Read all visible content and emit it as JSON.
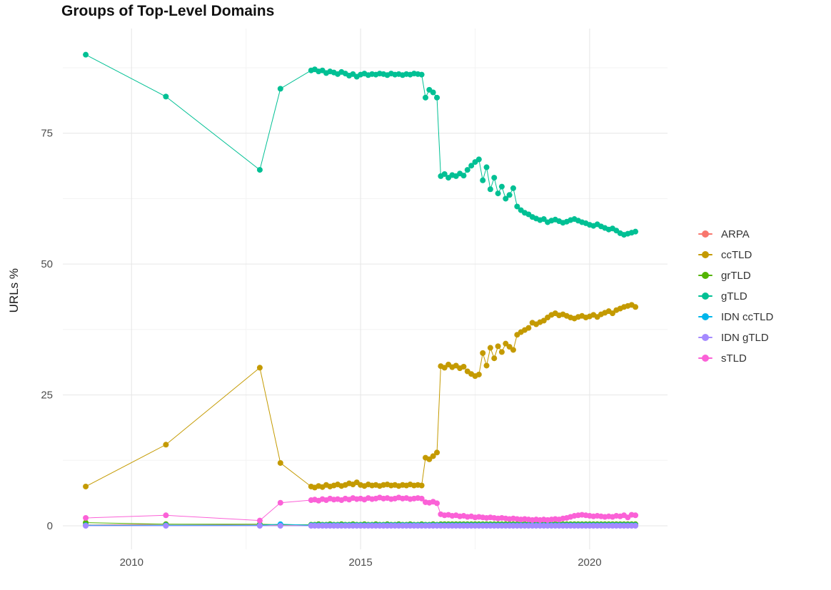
{
  "page": {
    "background": "#ffffff"
  },
  "chart_data": {
    "type": "line",
    "title": "Groups of Top-Level Domains",
    "xlabel": "",
    "ylabel": "URLs %",
    "grid": true,
    "legend_position": "right",
    "x_ticks": [
      2010,
      2015,
      2020
    ],
    "x_minor_ticks": [
      2012.5,
      2017.5
    ],
    "y_ticks": [
      0,
      25,
      50,
      75
    ],
    "y_minor_ticks": [
      12.5,
      37.5,
      62.5,
      87.5
    ],
    "x_domain": [
      2008.5,
      2021.7
    ],
    "y_domain": [
      -4.5,
      95
    ],
    "x": [
      2009.0,
      2010.75,
      2012.8,
      2013.25,
      2013.92,
      2014.0,
      2014.083,
      2014.167,
      2014.25,
      2014.333,
      2014.417,
      2014.5,
      2014.583,
      2014.667,
      2014.75,
      2014.833,
      2014.917,
      2015.0,
      2015.083,
      2015.167,
      2015.25,
      2015.333,
      2015.417,
      2015.5,
      2015.583,
      2015.667,
      2015.75,
      2015.833,
      2015.917,
      2016.0,
      2016.083,
      2016.167,
      2016.25,
      2016.333,
      2016.417,
      2016.5,
      2016.583,
      2016.667,
      2016.75,
      2016.833,
      2016.917,
      2017.0,
      2017.083,
      2017.167,
      2017.25,
      2017.333,
      2017.417,
      2017.5,
      2017.583,
      2017.667,
      2017.75,
      2017.833,
      2017.917,
      2018.0,
      2018.083,
      2018.167,
      2018.25,
      2018.333,
      2018.417,
      2018.5,
      2018.583,
      2018.667,
      2018.75,
      2018.833,
      2018.917,
      2019.0,
      2019.083,
      2019.167,
      2019.25,
      2019.333,
      2019.417,
      2019.5,
      2019.583,
      2019.667,
      2019.75,
      2019.833,
      2019.917,
      2020.0,
      2020.083,
      2020.167,
      2020.25,
      2020.333,
      2020.417,
      2020.5,
      2020.583,
      2020.667,
      2020.75,
      2020.833,
      2020.917,
      2021.0
    ],
    "series": [
      {
        "name": "ARPA",
        "color": "#F8766D",
        "values": [
          0.15,
          0.3,
          0.15,
          0.15,
          0.15,
          0.15,
          0.15,
          0.15,
          0.15,
          0.15,
          0.15,
          0.15,
          0.15,
          0.15,
          0.15,
          0.15,
          0.15,
          0.15,
          0.15,
          0.15,
          0.15,
          0.15,
          0.15,
          0.15,
          0.15,
          0.15,
          0.15,
          0.15,
          0.15,
          0.15,
          0.15,
          0.15,
          0.15,
          0.15,
          0.15,
          0.15,
          0.15,
          0.15,
          0.15,
          0.15,
          0.15,
          0.15,
          0.15,
          0.15,
          0.15,
          0.15,
          0.15,
          0.15,
          0.15,
          0.15,
          0.15,
          0.15,
          0.15,
          0.15,
          0.15,
          0.15,
          0.15,
          0.15,
          0.15,
          0.15,
          0.15,
          0.15,
          0.15,
          0.15,
          0.15,
          0.15,
          0.15,
          0.15,
          0.15,
          0.15,
          0.15,
          0.15,
          0.15,
          0.15,
          0.15,
          0.15,
          0.15,
          0.15,
          0.15,
          0.15,
          0.15,
          0.15,
          0.15,
          0.15,
          0.15,
          0.15,
          0.15,
          0.15,
          0.15,
          0.15
        ]
      },
      {
        "name": "ccTLD",
        "color": "#C49A00",
        "values": [
          7.5,
          15.5,
          30.2,
          12,
          7.5,
          7.3,
          7.6,
          7.4,
          7.8,
          7.5,
          7.7,
          7.9,
          7.6,
          7.8,
          8.1,
          7.9,
          8.3,
          7.8,
          7.6,
          7.9,
          7.7,
          7.8,
          7.6,
          7.8,
          7.9,
          7.7,
          7.8,
          7.6,
          7.8,
          7.7,
          7.9,
          7.7,
          7.8,
          7.7,
          13,
          12.7,
          13.3,
          14,
          30.5,
          30.2,
          30.8,
          30.3,
          30.6,
          30.1,
          30.4,
          29.5,
          29,
          28.6,
          28.9,
          33,
          30.6,
          34,
          32,
          34.3,
          33.2,
          34.8,
          34.2,
          33.6,
          36.5,
          37,
          37.4,
          37.8,
          38.8,
          38.5,
          38.9,
          39.2,
          39.8,
          40.3,
          40.6,
          40.2,
          40.4,
          40.1,
          39.8,
          39.6,
          39.9,
          40.1,
          39.8,
          40,
          40.3,
          39.9,
          40.4,
          40.7,
          41,
          40.6,
          41.2,
          41.5,
          41.8,
          42,
          42.2,
          41.8
        ]
      },
      {
        "name": "grTLD",
        "color": "#53B400",
        "values": [
          0.6,
          0.3,
          0.3,
          0.2,
          0.2,
          0.2,
          0.3,
          0.2,
          0.2,
          0.3,
          0.2,
          0.2,
          0.3,
          0.2,
          0.2,
          0.3,
          0.2,
          0.2,
          0.3,
          0.2,
          0.2,
          0.3,
          0.2,
          0.2,
          0.3,
          0.2,
          0.2,
          0.3,
          0.2,
          0.2,
          0.3,
          0.2,
          0.2,
          0.3,
          0.2,
          0.2,
          0.3,
          0.2,
          0.3,
          0.3,
          0.3,
          0.3,
          0.3,
          0.3,
          0.3,
          0.3,
          0.3,
          0.3,
          0.3,
          0.3,
          0.3,
          0.3,
          0.3,
          0.3,
          0.3,
          0.3,
          0.3,
          0.3,
          0.3,
          0.3,
          0.3,
          0.3,
          0.3,
          0.3,
          0.3,
          0.3,
          0.3,
          0.3,
          0.3,
          0.3,
          0.3,
          0.3,
          0.3,
          0.3,
          0.3,
          0.3,
          0.3,
          0.3,
          0.3,
          0.3,
          0.3,
          0.3,
          0.3,
          0.3,
          0.3,
          0.3,
          0.3,
          0.3,
          0.3,
          0.3
        ]
      },
      {
        "name": "gTLD",
        "color": "#00C094",
        "values": [
          90,
          82,
          68,
          83.5,
          87,
          87.2,
          86.8,
          87,
          86.5,
          86.8,
          86.6,
          86.3,
          86.7,
          86.4,
          86,
          86.3,
          85.8,
          86.2,
          86.4,
          86.1,
          86.3,
          86.2,
          86.4,
          86.3,
          86.1,
          86.4,
          86.2,
          86.3,
          86.1,
          86.3,
          86.2,
          86.4,
          86.3,
          86.2,
          81.8,
          83.3,
          82.8,
          81.8,
          66.8,
          67.2,
          66.5,
          67,
          66.8,
          67.3,
          66.9,
          68,
          68.8,
          69.5,
          70,
          66,
          68.5,
          64.3,
          66.5,
          63.5,
          64.8,
          62.5,
          63.2,
          64.5,
          61,
          60.3,
          59.8,
          59.5,
          59,
          58.7,
          58.4,
          58.6,
          58,
          58.3,
          58.5,
          58.2,
          57.9,
          58.1,
          58.4,
          58.6,
          58.3,
          58,
          57.8,
          57.5,
          57.3,
          57.6,
          57.2,
          56.9,
          56.6,
          56.8,
          56.4,
          55.9,
          55.6,
          55.8,
          56,
          56.2
        ]
      },
      {
        "name": "IDN ccTLD",
        "color": "#00B6EB",
        "values": [
          0.1,
          0.1,
          0.1,
          0.3,
          0.1,
          0.1,
          0.1,
          0.1,
          0.1,
          0.1,
          0.1,
          0.1,
          0.1,
          0.1,
          0.1,
          0.1,
          0.1,
          0.1,
          0.1,
          0.1,
          0.1,
          0.1,
          0.1,
          0.1,
          0.1,
          0.1,
          0.1,
          0.1,
          0.1,
          0.1,
          0.1,
          0.1,
          0.1,
          0.1,
          0.1,
          0.1,
          0.1,
          0.1,
          0.1,
          0.1,
          0.1,
          0.1,
          0.1,
          0.1,
          0.1,
          0.1,
          0.1,
          0.1,
          0.1,
          0.1,
          0.1,
          0.1,
          0.1,
          0.1,
          0.1,
          0.1,
          0.1,
          0.1,
          0.1,
          0.1,
          0.1,
          0.1,
          0.1,
          0.1,
          0.1,
          0.1,
          0.1,
          0.1,
          0.1,
          0.1,
          0.1,
          0.1,
          0.1,
          0.1,
          0.1,
          0.1,
          0.1,
          0.1,
          0.1,
          0.1,
          0.1,
          0.1,
          0.1,
          0.1,
          0.1,
          0.1,
          0.1,
          0.1,
          0.1,
          0.1
        ]
      },
      {
        "name": "IDN gTLD",
        "color": "#A58AFF",
        "values": [
          0,
          0,
          0,
          0,
          0,
          0,
          0,
          0,
          0,
          0,
          0,
          0,
          0,
          0,
          0,
          0,
          0,
          0,
          0,
          0,
          0,
          0,
          0,
          0,
          0,
          0,
          0,
          0,
          0,
          0,
          0,
          0,
          0,
          0,
          0,
          0,
          0,
          0,
          0,
          0,
          0,
          0,
          0,
          0,
          0,
          0,
          0,
          0,
          0,
          0,
          0,
          0,
          0,
          0,
          0,
          0,
          0,
          0,
          0,
          0,
          0,
          0,
          0,
          0,
          0,
          0,
          0,
          0,
          0,
          0,
          0,
          0,
          0,
          0,
          0,
          0,
          0,
          0,
          0,
          0,
          0,
          0,
          0,
          0,
          0,
          0,
          0,
          0,
          0,
          0
        ]
      },
      {
        "name": "sTLD",
        "color": "#FB61D7",
        "values": [
          1.5,
          2,
          1,
          4.4,
          4.9,
          5,
          4.8,
          5.1,
          4.9,
          5.2,
          5,
          5.1,
          4.9,
          5.2,
          5,
          5.3,
          5.1,
          5.2,
          5,
          5.3,
          5.1,
          5.2,
          5.4,
          5.2,
          5.3,
          5.1,
          5.2,
          5.4,
          5.2,
          5.3,
          5.1,
          5.2,
          5.3,
          5.2,
          4.5,
          4.4,
          4.6,
          4.3,
          2.2,
          2,
          2.1,
          1.9,
          2,
          1.8,
          1.9,
          1.7,
          1.8,
          1.6,
          1.7,
          1.6,
          1.5,
          1.6,
          1.5,
          1.4,
          1.5,
          1.4,
          1.3,
          1.4,
          1.3,
          1.2,
          1.3,
          1.2,
          1.1,
          1.2,
          1.1,
          1.2,
          1.1,
          1.2,
          1.3,
          1.2,
          1.4,
          1.5,
          1.7,
          1.9,
          2,
          2.1,
          2,
          1.9,
          1.8,
          1.9,
          1.8,
          1.7,
          1.8,
          1.7,
          1.9,
          1.8,
          2,
          1.6,
          2.1,
          2
        ]
      }
    ]
  }
}
